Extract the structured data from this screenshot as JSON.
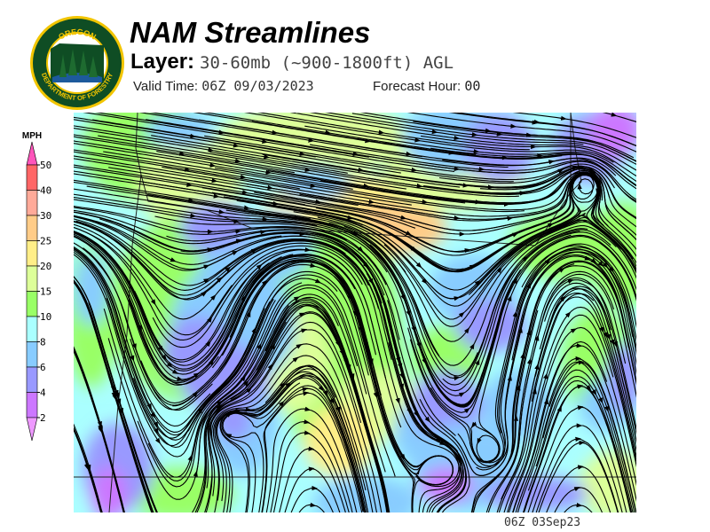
{
  "header": {
    "title": "NAM Streamlines",
    "layer_label": "Layer:",
    "layer_value": "30-60mb (~900-1800ft) AGL",
    "valid_label": "Valid Time:",
    "valid_value": "06Z 09/03/2023",
    "forecast_label": "Forecast Hour:",
    "forecast_value": "00"
  },
  "logo": {
    "text_top": "OREGON",
    "text_bottom": "DEPARTMENT OF FORESTRY",
    "colors": {
      "ring": "#f2c500",
      "field": "#0f4d24",
      "water": "#1d5a9c"
    }
  },
  "legend": {
    "unit": "MPH",
    "ticks": [
      "50",
      "40",
      "30",
      "25",
      "20",
      "15",
      "10",
      "8",
      "6",
      "4",
      "2"
    ],
    "bins": [
      {
        "range": ">50",
        "color": "#ff55bb"
      },
      {
        "range": "40-50",
        "color": "#ff6666"
      },
      {
        "range": "30-40",
        "color": "#ffaa99"
      },
      {
        "range": "25-30",
        "color": "#ffcc88"
      },
      {
        "range": "20-25",
        "color": "#ffee88"
      },
      {
        "range": "15-20",
        "color": "#ddff99"
      },
      {
        "range": "10-15",
        "color": "#99ff66"
      },
      {
        "range": "8-10",
        "color": "#aaffff"
      },
      {
        "range": "6-8",
        "color": "#88ccff"
      },
      {
        "range": "4-6",
        "color": "#9999ff"
      },
      {
        "range": "2-4",
        "color": "#cc77ff"
      },
      {
        "range": "<2",
        "color": "#ee99ff"
      }
    ]
  },
  "map": {
    "type": "wind streamlines over wind speed shading",
    "region": "Oregon"
  },
  "footer": {
    "stamp": "06Z 03Sep23"
  }
}
